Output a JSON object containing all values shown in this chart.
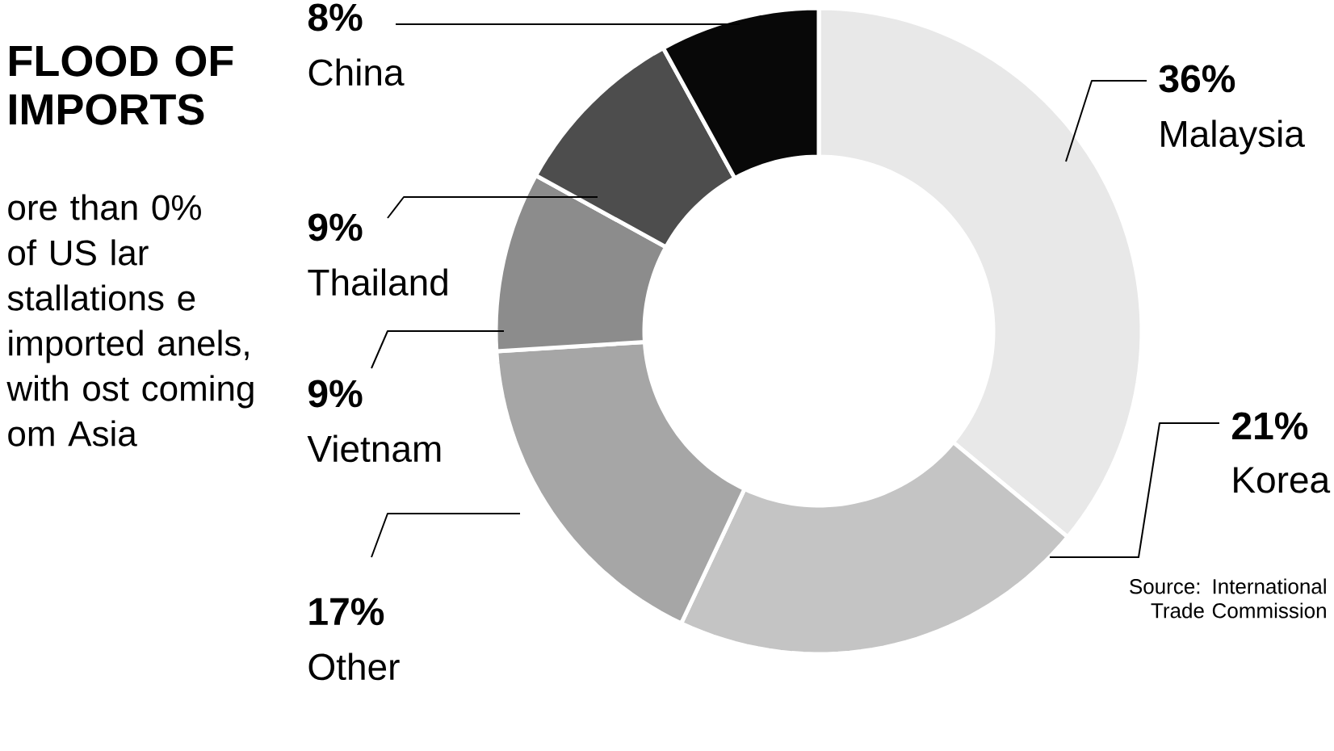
{
  "chart_data": {
    "type": "donut",
    "title": "FLOOD OF IMPORTS",
    "subtitle": "ore than 0% of US lar stallations e imported anels, with ost coming om Asia",
    "categories": [
      "Malaysia",
      "Korea",
      "Other",
      "Vietnam",
      "Thailand",
      "China"
    ],
    "values": [
      36,
      21,
      17,
      9,
      9,
      8
    ],
    "colors": [
      "#e8e8e8",
      "#c4c4c4",
      "#a6a6a6",
      "#8c8c8c",
      "#4d4d4d",
      "#080808"
    ],
    "value_labels": [
      "36%",
      "21%",
      "17%",
      "9%",
      "9%",
      "8%"
    ],
    "annotations": [
      "Source: International Trade Commission"
    ]
  }
}
